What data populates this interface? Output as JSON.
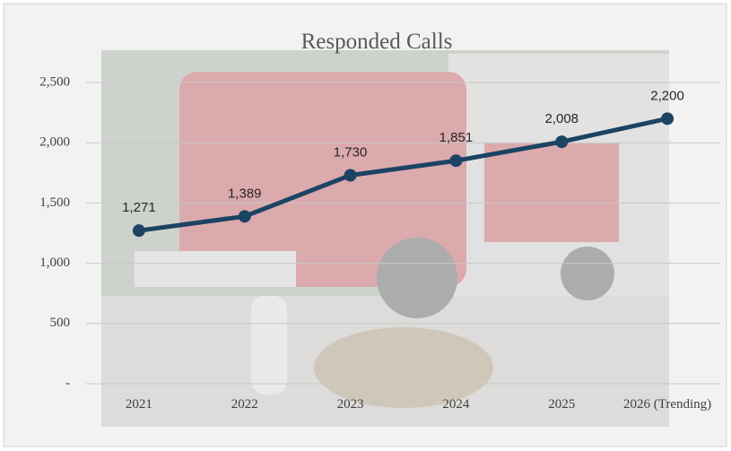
{
  "chart_data": {
    "type": "line",
    "title": "Responded Calls",
    "categories": [
      "2021",
      "2022",
      "2023",
      "2024",
      "2025",
      "2026 (Trending)"
    ],
    "series": [
      {
        "name": "Responded Calls",
        "color": "#1b4363",
        "values": [
          1271,
          1389,
          1730,
          1851,
          2008,
          2200
        ],
        "value_labels": [
          "1,271",
          "1,389",
          "1,730",
          "1,851",
          "2,008",
          "2,200"
        ]
      }
    ],
    "ylim": [
      0,
      2500
    ],
    "yticks": [
      {
        "value": 0,
        "label": "-"
      },
      500,
      {
        "value": 1000,
        "label": "1,000"
      },
      {
        "value": 1500,
        "label": "1,500"
      },
      {
        "value": 2000,
        "label": "2,000"
      },
      {
        "value": 2500,
        "label": "2,500"
      }
    ],
    "grid": true
  }
}
